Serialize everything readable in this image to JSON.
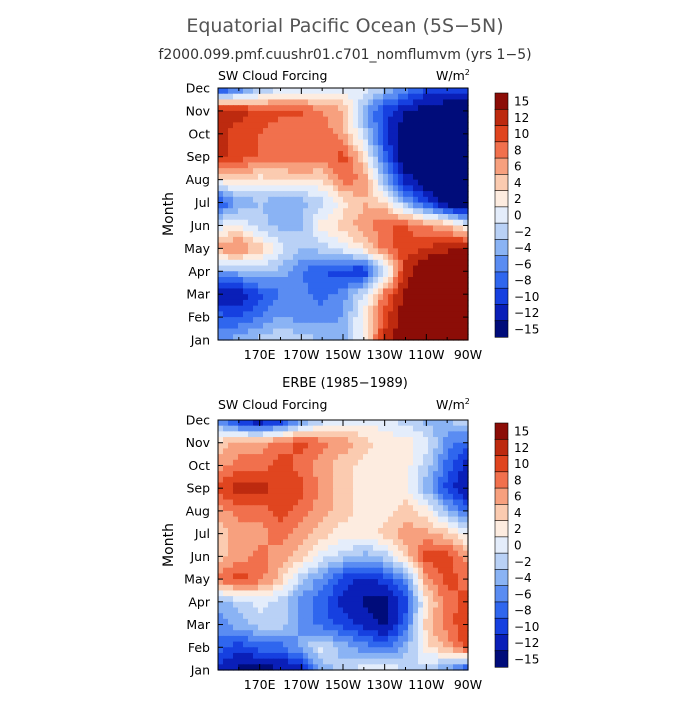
{
  "page": {
    "title": "Equatorial Pacific Ocean (5S−5N)",
    "subtitle": "f2000.099.pmf.cuushr01.c701_nomflumvm (yrs 1−5)"
  },
  "colors": {
    "levels": [
      "#000c7a",
      "#0a1fb8",
      "#1640e0",
      "#2f66ee",
      "#5a8cf2",
      "#8ab3f4",
      "#b9d1f6",
      "#e4edfb",
      "#fdece0",
      "#fbcbb0",
      "#f7a07e",
      "#f1704d",
      "#e0451f",
      "#bd2a0f",
      "#8c0d07"
    ]
  },
  "chart_data": [
    {
      "type": "heatmap",
      "title": "",
      "panel_label": "SW Cloud Forcing",
      "units": "W/m",
      "units_sup": "2",
      "ylabel": "Month",
      "xlabel": "",
      "x_ticks": [
        "170E",
        "170W",
        "150W",
        "130W",
        "110W",
        "90W"
      ],
      "x_tick_lons": [
        170,
        190,
        210,
        230,
        250,
        270
      ],
      "xlim": [
        150,
        270
      ],
      "y_ticks": [
        "Jan",
        "Feb",
        "Mar",
        "Apr",
        "May",
        "Jun",
        "Jul",
        "Aug",
        "Sep",
        "Oct",
        "Nov",
        "Dec"
      ],
      "x": [
        150,
        160,
        170,
        180,
        190,
        200,
        210,
        220,
        230,
        240,
        250,
        260,
        270
      ],
      "z": [
        [
          -6,
          -4,
          -2,
          -1,
          -2,
          -3,
          -4,
          1,
          12,
          16,
          18,
          18,
          18
        ],
        [
          -8,
          -9,
          -7,
          -5,
          -6,
          -6,
          -5,
          2,
          10,
          16,
          18,
          18,
          18
        ],
        [
          -14,
          -13,
          -10,
          -7,
          -6,
          -8,
          -6,
          -1,
          8,
          14,
          17,
          18,
          18
        ],
        [
          -4,
          -4,
          -2,
          -4,
          -7,
          -9,
          -10,
          -11,
          -2,
          12,
          17,
          18,
          18
        ],
        [
          6,
          8,
          4,
          0,
          -3,
          -2,
          0,
          3,
          8,
          10,
          11,
          13,
          14
        ],
        [
          0,
          1,
          -2,
          -4,
          -3,
          2,
          4,
          6,
          9,
          9,
          7,
          5,
          0
        ],
        [
          -10,
          -5,
          -3,
          -5,
          -4,
          -2,
          2,
          5,
          3,
          -4,
          -10,
          -16,
          -18
        ],
        [
          2,
          4,
          2,
          3,
          3,
          3,
          8,
          7,
          -4,
          -12,
          -16,
          -18,
          -18
        ],
        [
          12,
          10,
          9,
          8,
          9,
          8,
          10,
          3,
          -8,
          -16,
          -18,
          -18,
          -18
        ],
        [
          12,
          10,
          9,
          7,
          9,
          8,
          6,
          -2,
          -10,
          -17,
          -18,
          -18,
          -18
        ],
        [
          12,
          12,
          10,
          10,
          9,
          7,
          5,
          -4,
          -10,
          -13,
          -15,
          -16,
          -18
        ],
        [
          -12,
          -8,
          -4,
          -2,
          -1,
          0,
          0,
          0,
          -2,
          -6,
          -9,
          -10,
          -10
        ]
      ],
      "levels": [
        -15,
        -12,
        -10,
        -8,
        -6,
        -4,
        -2,
        0,
        2,
        4,
        6,
        8,
        10,
        12,
        15
      ],
      "colorbar_labels": [
        "15",
        "12",
        "10",
        "8",
        "6",
        "4",
        "2",
        "0",
        "−2",
        "−4",
        "−6",
        "−8",
        "−10",
        "−12",
        "−15"
      ]
    },
    {
      "type": "heatmap",
      "title": "ERBE (1985−1989)",
      "panel_label": "SW Cloud Forcing",
      "units": "W/m",
      "units_sup": "2",
      "ylabel": "Month",
      "xlabel": "",
      "x_ticks": [
        "170E",
        "170W",
        "150W",
        "130W",
        "110W",
        "90W"
      ],
      "x_tick_lons": [
        170,
        190,
        210,
        230,
        250,
        270
      ],
      "xlim": [
        150,
        270
      ],
      "y_ticks": [
        "Jan",
        "Feb",
        "Mar",
        "Apr",
        "May",
        "Jun",
        "Jul",
        "Aug",
        "Sep",
        "Oct",
        "Nov",
        "Dec"
      ],
      "x": [
        150,
        160,
        170,
        180,
        190,
        200,
        210,
        220,
        230,
        240,
        250,
        260,
        270
      ],
      "z": [
        [
          -12,
          -14,
          -15,
          -14,
          -12,
          -4,
          -2,
          0,
          1,
          -1,
          -2,
          -6,
          -10
        ],
        [
          -8,
          -10,
          -8,
          -8,
          -4,
          0,
          -4,
          -6,
          -8,
          -4,
          2,
          6,
          10
        ],
        [
          -6,
          -4,
          -2,
          -2,
          -6,
          -8,
          -10,
          -12,
          -14,
          -8,
          4,
          8,
          11
        ],
        [
          -4,
          -2,
          0,
          -2,
          -6,
          -8,
          -12,
          -14,
          -15,
          -10,
          2,
          8,
          10
        ],
        [
          8,
          10,
          8,
          4,
          -2,
          -6,
          -10,
          -12,
          -10,
          -6,
          6,
          10,
          8
        ],
        [
          4,
          6,
          8,
          6,
          4,
          0,
          -2,
          -4,
          -2,
          4,
          10,
          10,
          6
        ],
        [
          4,
          6,
          6,
          8,
          6,
          4,
          2,
          2,
          4,
          6,
          6,
          4,
          0
        ],
        [
          6,
          8,
          8,
          10,
          8,
          6,
          4,
          2,
          2,
          4,
          2,
          -4,
          -8
        ],
        [
          10,
          12,
          12,
          10,
          10,
          6,
          4,
          2,
          2,
          2,
          -4,
          -10,
          -14
        ],
        [
          6,
          8,
          8,
          10,
          8,
          6,
          4,
          2,
          2,
          2,
          -2,
          -8,
          -12
        ],
        [
          4,
          6,
          6,
          8,
          10,
          8,
          6,
          4,
          2,
          2,
          0,
          -6,
          -8
        ],
        [
          -6,
          -12,
          -14,
          -12,
          -6,
          -2,
          0,
          0,
          0,
          -2,
          -4,
          -4,
          0
        ]
      ],
      "levels": [
        -15,
        -12,
        -10,
        -8,
        -6,
        -4,
        -2,
        0,
        2,
        4,
        6,
        8,
        10,
        12,
        15
      ],
      "colorbar_labels": [
        "15",
        "12",
        "10",
        "8",
        "6",
        "4",
        "2",
        "0",
        "−2",
        "−4",
        "−6",
        "−8",
        "−10",
        "−12",
        "−15"
      ]
    }
  ]
}
